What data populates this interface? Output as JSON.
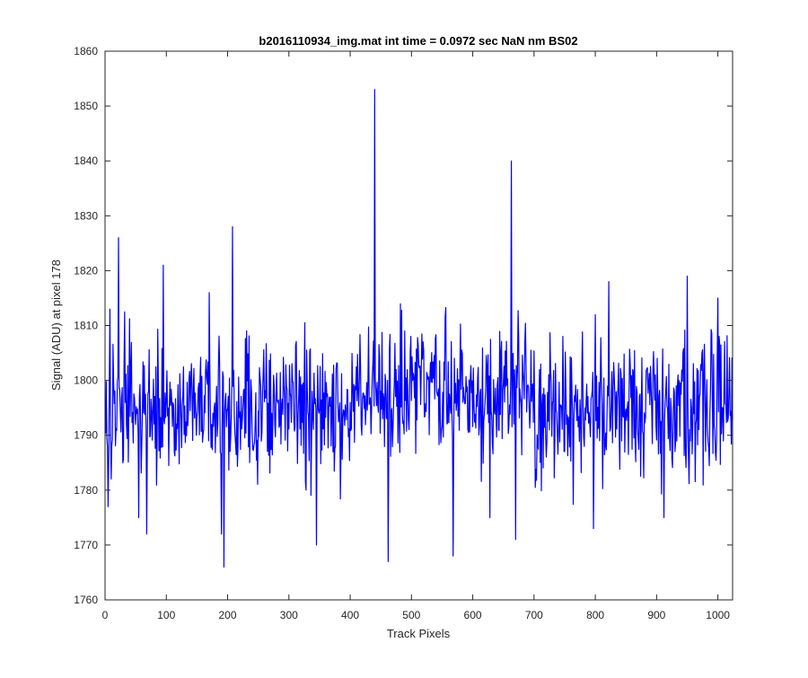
{
  "chart_data": {
    "type": "line",
    "title": "b2016110934_img.mat int time = 0.0972 sec  NaN nm BS02",
    "xlabel": "Track Pixels",
    "ylabel": "Signal (ADU) at pixel 178",
    "xlim": [
      0,
      1024
    ],
    "ylim": [
      1760,
      1860
    ],
    "xticks": [
      0,
      100,
      200,
      300,
      400,
      500,
      600,
      700,
      800,
      900,
      1000
    ],
    "yticks": [
      1760,
      1770,
      1780,
      1790,
      1800,
      1810,
      1820,
      1830,
      1840,
      1850,
      1860
    ],
    "grid": false,
    "box": true,
    "series": [
      {
        "color": "#0000ff",
        "n_points": 1024,
        "x_start": 1,
        "noise_mean_segments": [
          {
            "x_range": [
              1,
              400
            ],
            "mean": 1795
          },
          {
            "x_range": [
              400,
              700
            ],
            "mean": 1798
          },
          {
            "x_range": [
              700,
              1024
            ],
            "mean": 1795
          }
        ],
        "typical_range": [
          1775,
          1815
        ],
        "notable_points": [
          {
            "x": 5,
            "y": 1777
          },
          {
            "x": 8,
            "y": 1813
          },
          {
            "x": 22,
            "y": 1826
          },
          {
            "x": 55,
            "y": 1775
          },
          {
            "x": 68,
            "y": 1772
          },
          {
            "x": 95,
            "y": 1821
          },
          {
            "x": 170,
            "y": 1816
          },
          {
            "x": 190,
            "y": 1772
          },
          {
            "x": 194,
            "y": 1766
          },
          {
            "x": 208,
            "y": 1828
          },
          {
            "x": 345,
            "y": 1770
          },
          {
            "x": 440,
            "y": 1853
          },
          {
            "x": 462,
            "y": 1767
          },
          {
            "x": 568,
            "y": 1768
          },
          {
            "x": 628,
            "y": 1775
          },
          {
            "x": 663,
            "y": 1840
          },
          {
            "x": 670,
            "y": 1771
          },
          {
            "x": 797,
            "y": 1773
          },
          {
            "x": 822,
            "y": 1818
          },
          {
            "x": 912,
            "y": 1775
          },
          {
            "x": 950,
            "y": 1819
          },
          {
            "x": 1000,
            "y": 1815
          }
        ]
      }
    ]
  }
}
